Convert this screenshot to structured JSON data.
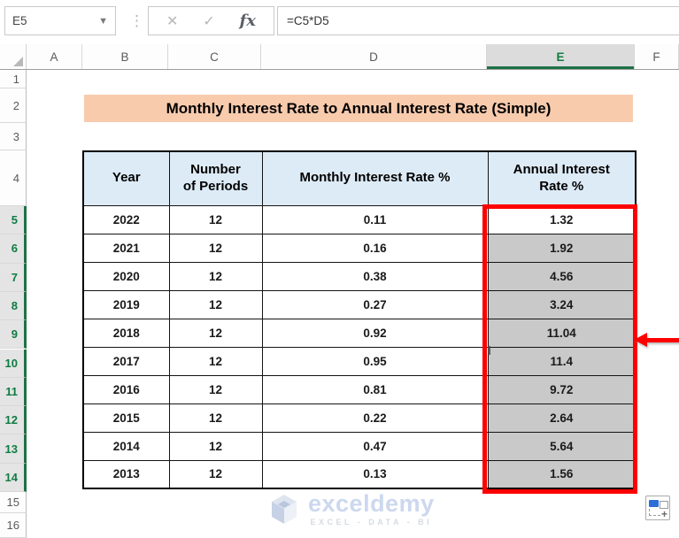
{
  "formula_bar": {
    "name_box": "E5",
    "formula": "=C5*D5",
    "cancel_icon": "✕",
    "enter_icon": "✓",
    "fx_icon": "fx"
  },
  "grid": {
    "column_headers": [
      "A",
      "B",
      "C",
      "D",
      "E",
      "F"
    ],
    "selected_column": "E",
    "row_headers": [
      "1",
      "2",
      "3",
      "4",
      "5",
      "6",
      "7",
      "8",
      "9",
      "10",
      "11",
      "12",
      "13",
      "14",
      "15",
      "16"
    ],
    "selected_rows": [
      "5",
      "6",
      "7",
      "8",
      "9",
      "10",
      "11",
      "12",
      "13",
      "14"
    ],
    "active_cell": "E5"
  },
  "sheet": {
    "title": "Monthly Interest Rate to Annual Interest Rate (Simple)"
  },
  "table": {
    "headers": [
      "Year",
      "Number\nof Periods",
      "Monthly Interest Rate %",
      "Annual Interest\nRate %"
    ],
    "rows": [
      [
        "2022",
        "12",
        "0.11",
        "1.32"
      ],
      [
        "2021",
        "12",
        "0.16",
        "1.92"
      ],
      [
        "2020",
        "12",
        "0.38",
        "4.56"
      ],
      [
        "2019",
        "12",
        "0.27",
        "3.24"
      ],
      [
        "2018",
        "12",
        "0.92",
        "11.04"
      ],
      [
        "2017",
        "12",
        "0.95",
        "11.4"
      ],
      [
        "2016",
        "12",
        "0.81",
        "9.72"
      ],
      [
        "2015",
        "12",
        "0.22",
        "2.64"
      ],
      [
        "2014",
        "12",
        "0.47",
        "5.64"
      ],
      [
        "2013",
        "12",
        "0.13",
        "1.56"
      ]
    ]
  },
  "watermark": {
    "brand": "exceldemy",
    "tagline": "EXCEL - DATA - BI"
  },
  "colors": {
    "title_bg": "#F8CBAD",
    "table_header_bg": "#DDEBF7",
    "selected_cell_gray": "#C9C9C9",
    "excel_green": "#107C41",
    "annotation_red": "#FE0000"
  }
}
